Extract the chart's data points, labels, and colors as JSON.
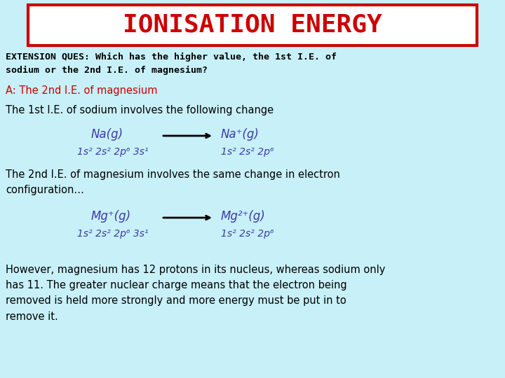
{
  "bg_color": "#c8f0f8",
  "title": "IONISATION ENERGY",
  "title_color": "#cc0000",
  "title_bg": "#ffffff",
  "title_border_color": "#cc0000",
  "question_text": "EXTENSION QUES: Which has the higher value, the 1st I.E. of\nsodium or the 2nd I.E. of magnesium?",
  "answer_text": "A: The 2nd I.E. of magnesium",
  "answer_color": "#cc0000",
  "line1": "The 1st I.E. of sodium involves the following change",
  "na_left": "Na(g)",
  "na_right": "Na⁺(g)",
  "na_left_config": "1s² 2s² 2p⁶ 3s¹",
  "na_right_config": "1s² 2s² 2p⁶",
  "line2": "The 2nd I.E. of magnesium involves the same change in electron\nconfiguration…",
  "mg_left": "Mg⁺(g)",
  "mg_right": "Mg²⁺(g)",
  "mg_left_config": "1s² 2s² 2p⁶ 3s¹",
  "mg_right_config": "1s² 2s² 2p⁶",
  "conclusion": "However, magnesium has 12 protons in its nucleus, whereas sodium only\nhas 11. The greater nuclear charge means that the electron being\nremoved is held more strongly and more energy must be put in to\nremove it.",
  "equation_color": "#3a3aaa",
  "body_color": "#000000"
}
